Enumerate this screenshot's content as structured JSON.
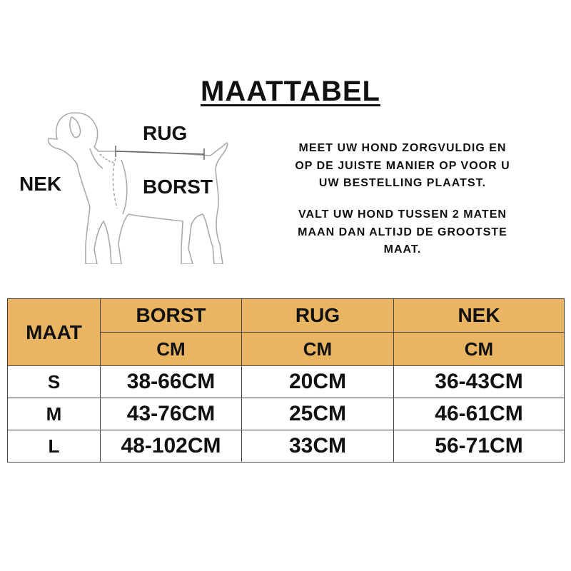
{
  "title": "MAATTABEL",
  "diagram": {
    "rug": "RUG",
    "nek": "NEK",
    "borst": "BORST"
  },
  "instructions": [
    [
      "MEET UW HOND ZORGVULDIG EN",
      "OP DE JUISTE MANIER OP VOOR U",
      "UW BESTELLING PLAATST."
    ],
    [
      "VALT UW HOND TUSSEN 2 MATEN",
      "MAAN DAN ALTIJD DE GROOTSTE",
      "MAAT."
    ]
  ],
  "table": {
    "header": [
      "MAAT",
      "BORST",
      "RUG",
      "NEK"
    ],
    "units": [
      "CM",
      "CM",
      "CM"
    ],
    "rows": [
      [
        "S",
        "38-66CM",
        "20CM",
        "36-43CM"
      ],
      [
        "M",
        "43-76CM",
        "25CM",
        "46-61CM"
      ],
      [
        "L",
        "48-102CM",
        "33CM",
        "56-71CM"
      ]
    ]
  }
}
